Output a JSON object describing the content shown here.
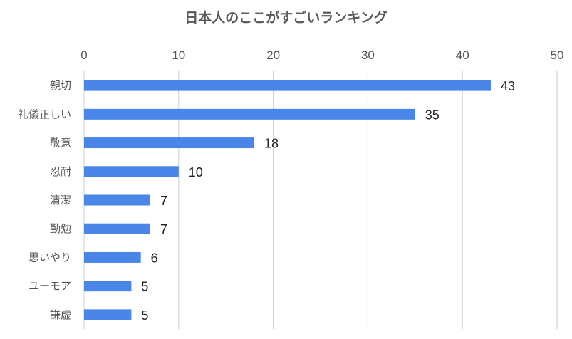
{
  "chart_data": {
    "type": "bar",
    "orientation": "horizontal",
    "title": "日本人のここがすごいランキング",
    "categories": [
      "親切",
      "礼儀正しい",
      "敬意",
      "忍耐",
      "清潔",
      "勤勉",
      "思いやり",
      "ユーモア",
      "謙虚"
    ],
    "values": [
      43,
      35,
      18,
      10,
      7,
      7,
      6,
      5,
      5
    ],
    "xlim": [
      0,
      50
    ],
    "xticks": [
      0,
      10,
      20,
      30,
      40,
      50
    ],
    "x_axis_position": "top",
    "grid": true,
    "legend": "none",
    "colors": {
      "bar": "#4a86e8",
      "grid": "#cccccc"
    }
  }
}
